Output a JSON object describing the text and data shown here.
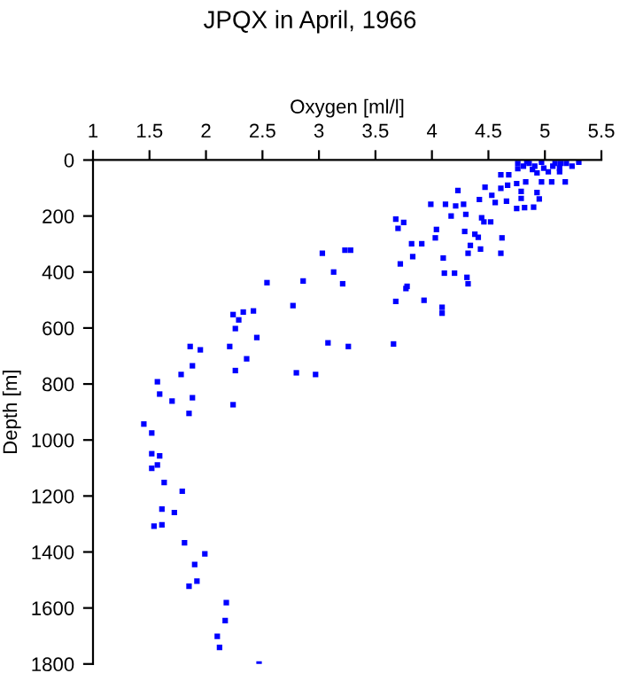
{
  "chart_data": {
    "type": "scatter",
    "title": "JPQX in April, 1966",
    "xlabel": "Oxygen [ml/l]",
    "ylabel": "Depth [m]",
    "x": [
      2.47,
      2.12,
      2.1,
      2.17,
      2.18,
      1.85,
      1.92,
      1.9,
      1.99,
      1.81,
      1.54,
      1.61,
      1.61,
      1.72,
      1.63,
      1.79,
      1.52,
      1.57,
      1.52,
      1.59,
      1.52,
      1.45,
      1.85,
      1.7,
      1.59,
      1.88,
      1.57,
      1.78,
      1.88,
      2.24,
      2.26,
      2.36,
      1.86,
      1.95,
      2.21,
      2.45,
      2.26,
      2.29,
      2.24,
      2.33,
      2.42,
      2.77,
      3.08,
      3.26,
      3.66,
      2.8,
      2.97,
      3.68,
      4.09,
      4.09,
      3.93,
      2.54,
      2.86,
      3.13,
      3.21,
      3.03,
      3.23,
      3.28,
      3.72,
      3.83,
      3.82,
      3.91,
      3.68,
      3.75,
      3.7,
      4.04,
      4.03,
      4.1,
      4.11,
      4.2,
      3.78,
      3.77,
      4.31,
      4.32,
      4.32,
      4.34,
      4.43,
      4.29,
      4.38,
      4.41,
      4.62,
      4.61,
      4.44,
      4.46,
      4.52,
      3.99,
      4.12,
      4.21,
      4.17,
      4.3,
      4.28,
      4.42,
      4.23,
      4.47,
      4.53,
      4.56,
      4.61,
      4.61,
      4.68,
      4.67,
      4.66,
      4.75,
      4.75,
      4.82,
      4.9,
      4.79,
      4.79,
      4.93,
      4.95,
      4.83,
      4.97,
      5.06,
      4.93,
      5.03,
      5.13,
      5.18,
      4.76,
      4.81,
      4.86,
      4.91,
      4.97,
      4.99,
      5.09,
      5.13,
      5.19,
      5.24,
      5.3,
      4.76,
      4.89,
      5.07,
      5.14,
      4.84
    ],
    "values": [
      1800,
      1741,
      1701,
      1645,
      1581,
      1522,
      1504,
      1445,
      1407,
      1367,
      1308,
      1303,
      1247,
      1259,
      1152,
      1183,
      1101,
      1089,
      1049,
      1057,
      975,
      943,
      905,
      861,
      836,
      849,
      792,
      766,
      735,
      874,
      752,
      710,
      666,
      678,
      666,
      634,
      602,
      571,
      552,
      543,
      539,
      520,
      653,
      666,
      657,
      760,
      766,
      505,
      526,
      547,
      501,
      438,
      432,
      400,
      442,
      333,
      322,
      322,
      371,
      345,
      299,
      299,
      211,
      223,
      244,
      248,
      278,
      350,
      404,
      404,
      451,
      459,
      419,
      442,
      333,
      305,
      318,
      255,
      265,
      276,
      278,
      333,
      206,
      221,
      221,
      158,
      158,
      164,
      200,
      194,
      158,
      141,
      109,
      97,
      126,
      152,
      101,
      53,
      53,
      90,
      147,
      84,
      173,
      170,
      168,
      137,
      112,
      116,
      139,
      78,
      78,
      78,
      46,
      42,
      42,
      78,
      12,
      22,
      12,
      22,
      8,
      29,
      12,
      29,
      12,
      22,
      8,
      31,
      34,
      22,
      12,
      5
    ],
    "color": "#0000ff",
    "marker": "square",
    "xlim": [
      1,
      5.5
    ],
    "xticks": [
      1,
      1.5,
      2,
      2.5,
      3,
      3.5,
      4,
      4.5,
      5,
      5.5
    ],
    "ylim": [
      1800,
      0
    ],
    "yticks": [
      0,
      200,
      400,
      600,
      800,
      1000,
      1200,
      1400,
      1600,
      1800
    ],
    "grid": false
  }
}
